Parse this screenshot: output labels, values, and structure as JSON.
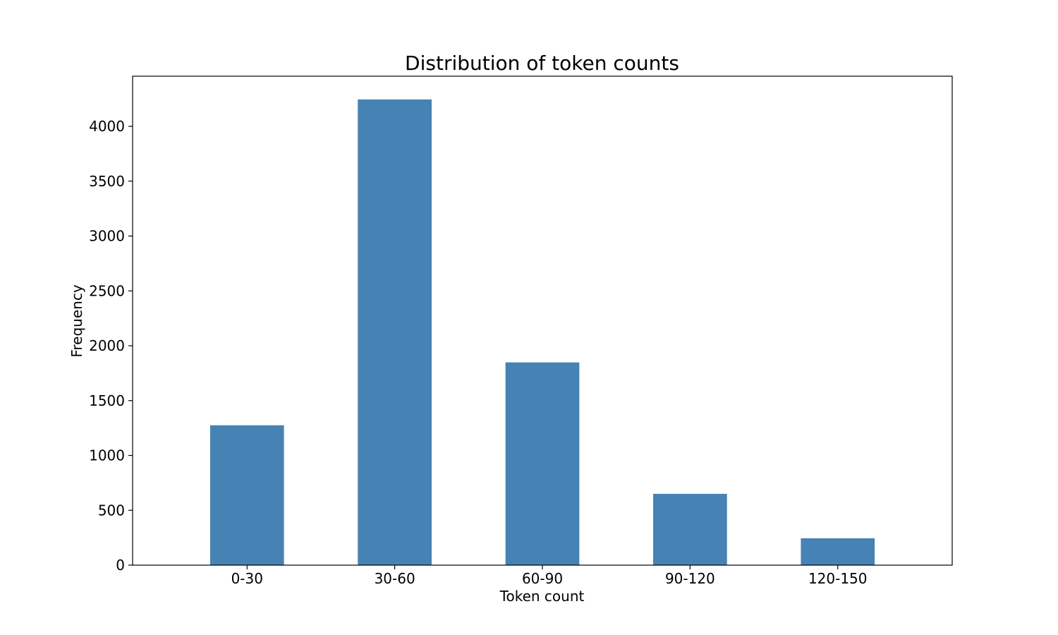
{
  "chart_data": {
    "type": "bar",
    "title": "Distribution of token counts",
    "xlabel": "Token count",
    "ylabel": "Frequency",
    "categories": [
      "0-30",
      "30-60",
      "60-90",
      "90-120",
      "120-150"
    ],
    "values": [
      1275,
      4245,
      1848,
      650,
      245
    ],
    "ylim": [
      0,
      4457
    ],
    "yticks": [
      0,
      500,
      1000,
      1500,
      2000,
      2500,
      3000,
      3500,
      4000
    ],
    "grid": false,
    "bar_color": "#4682b4"
  }
}
